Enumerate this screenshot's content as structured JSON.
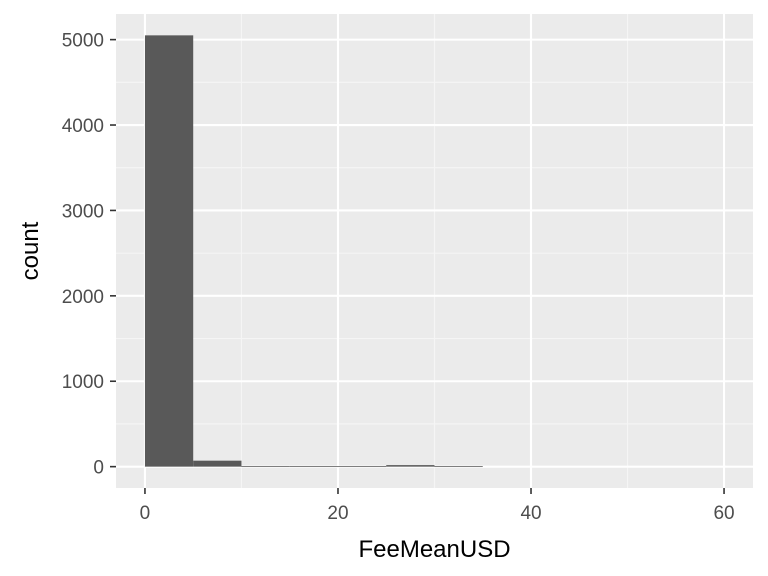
{
  "chart_data": {
    "type": "bar",
    "title": "",
    "xlabel": "FeeMeanUSD",
    "ylabel": "count",
    "bin_width": 5,
    "bins": [
      {
        "x_start": 0,
        "x_end": 5,
        "count": 5050
      },
      {
        "x_start": 5,
        "x_end": 10,
        "count": 70
      },
      {
        "x_start": 10,
        "x_end": 15,
        "count": 5
      },
      {
        "x_start": 15,
        "x_end": 20,
        "count": 5
      },
      {
        "x_start": 20,
        "x_end": 25,
        "count": 5
      },
      {
        "x_start": 25,
        "x_end": 30,
        "count": 18
      },
      {
        "x_start": 30,
        "x_end": 35,
        "count": 5
      }
    ],
    "xlim": [
      -3,
      63
    ],
    "ylim": [
      -250,
      5300
    ],
    "x_ticks": [
      0,
      20,
      40,
      60
    ],
    "x_minor_ticks": [
      10,
      30,
      50
    ],
    "y_ticks": [
      0,
      1000,
      2000,
      3000,
      4000,
      5000
    ],
    "y_minor_ticks": [
      500,
      1500,
      2500,
      3500,
      4500
    ],
    "x_tick_labels": [
      "0",
      "20",
      "40",
      "60"
    ],
    "y_tick_labels": [
      "0",
      "1000",
      "2000",
      "3000",
      "4000",
      "5000"
    ],
    "grid": true,
    "legend": "none",
    "colors": {
      "panel_background": "#ebebeb",
      "grid_major": "#ffffff",
      "grid_minor": "#f5f5f5",
      "bar_fill": "#595959",
      "tick_mark": "#333333"
    }
  }
}
